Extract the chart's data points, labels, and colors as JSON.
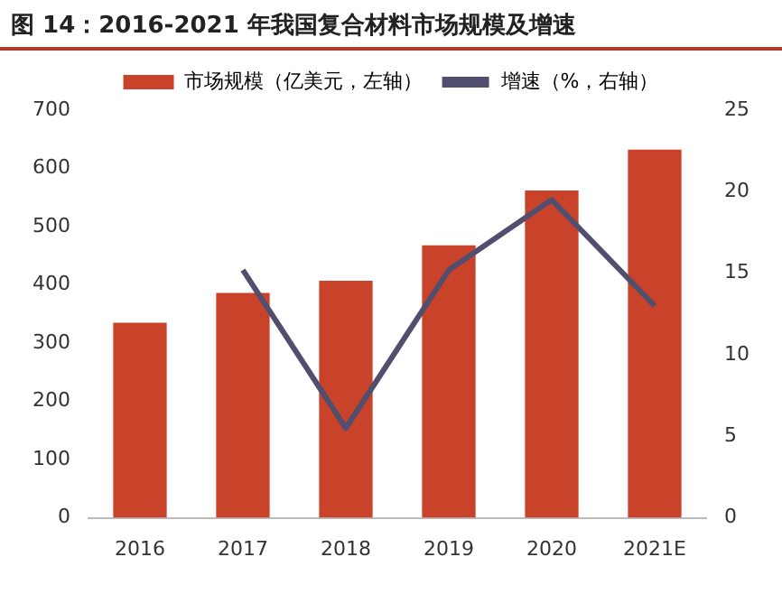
{
  "chart_data": {
    "type": "bar",
    "title": "图 14：2016-2021 年我国复合材料市场规模及增速",
    "categories": [
      "2016",
      "2017",
      "2018",
      "2019",
      "2020",
      "2021E"
    ],
    "series": [
      {
        "name": "市场规模（亿美元，左轴）",
        "color": "#c8432a",
        "values": [
          335,
          386,
          407,
          468,
          562,
          632
        ]
      },
      {
        "name": "增速（%，右轴）",
        "type": "line",
        "axis": "y2",
        "color": "#524e6e",
        "values": [
          null,
          15.2,
          5.5,
          15.2,
          19.5,
          13.0
        ]
      }
    ],
    "ylim": [
      0,
      700
    ],
    "yticks": [
      0,
      100,
      200,
      300,
      400,
      500,
      600,
      700
    ],
    "y2lim": [
      0,
      25
    ],
    "y2ticks": [
      0,
      5,
      10,
      15,
      20,
      25
    ],
    "grid": false,
    "legend": "top",
    "marker": "none",
    "line_style": "solid"
  }
}
